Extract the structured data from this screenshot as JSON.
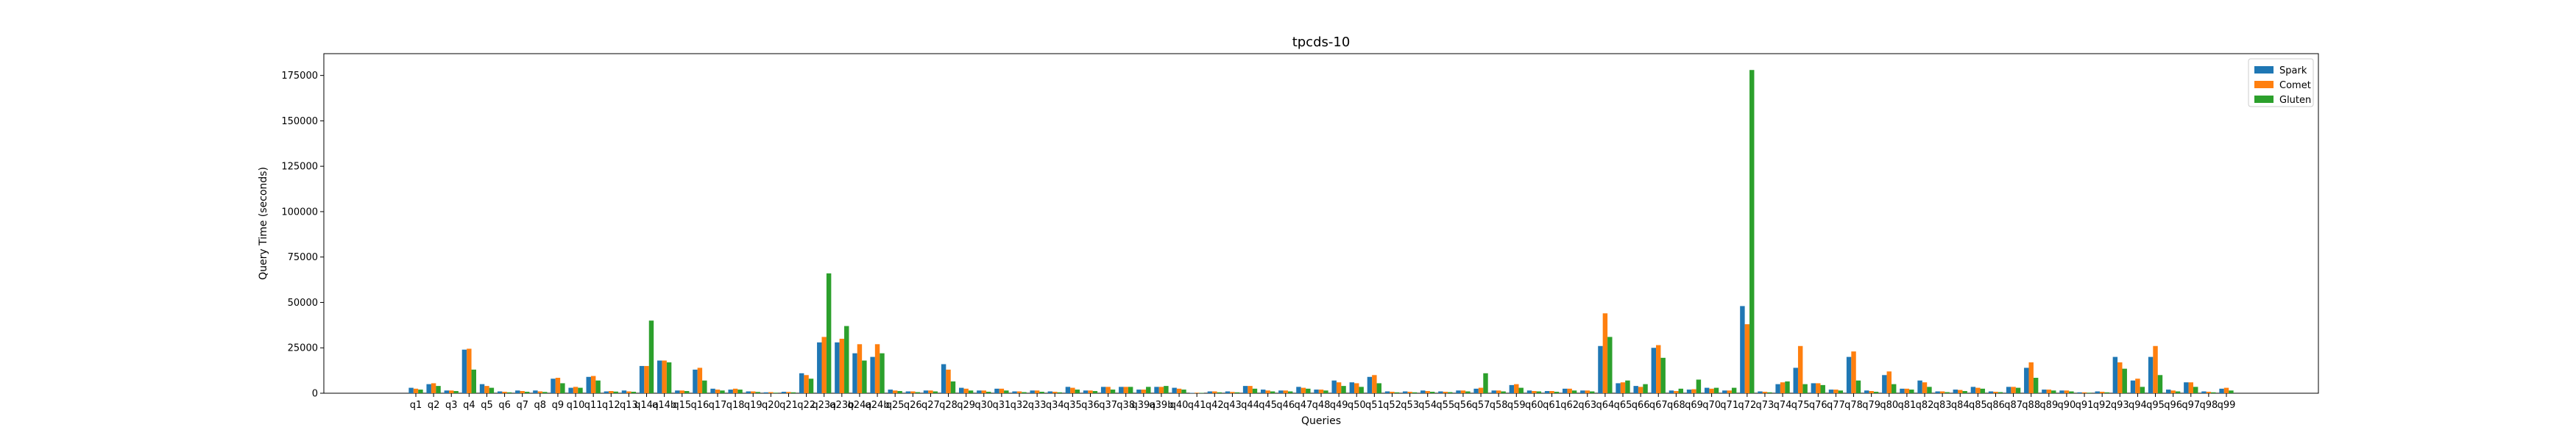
{
  "chart_data": {
    "type": "bar",
    "title": "tpcds-10",
    "xlabel": "Queries",
    "ylabel": "Query Time (seconds)",
    "ylim": [
      0,
      187000
    ],
    "yticks": [
      0,
      25000,
      50000,
      75000,
      100000,
      125000,
      150000,
      175000
    ],
    "legend_position": "top-right",
    "grid": false,
    "categories": [
      "q1",
      "q2",
      "q3",
      "q4",
      "q5",
      "q6",
      "q7",
      "q8",
      "q9",
      "q10",
      "q11",
      "q12",
      "q13",
      "q14a",
      "q14b",
      "q15",
      "q16",
      "q17",
      "q18",
      "q19",
      "q20",
      "q21",
      "q22",
      "q23a",
      "q23b",
      "q24a",
      "q24b",
      "q25",
      "q26",
      "q27",
      "q28",
      "q29",
      "q30",
      "q31",
      "q32",
      "q33",
      "q34",
      "q35",
      "q36",
      "q37",
      "q38",
      "q39a",
      "q39b",
      "q40",
      "q41",
      "q42",
      "q43",
      "q44",
      "q45",
      "q46",
      "q47",
      "q48",
      "q49",
      "q50",
      "q51",
      "q52",
      "q53",
      "q54",
      "q55",
      "q56",
      "q57",
      "q58",
      "q59",
      "q60",
      "q61",
      "q62",
      "q63",
      "q64",
      "q65",
      "q66",
      "q67",
      "q68",
      "q69",
      "q70",
      "q71",
      "q72",
      "q73",
      "q74",
      "q75",
      "q76",
      "q77",
      "q78",
      "q79",
      "q80",
      "q81",
      "q82",
      "q83",
      "q84",
      "q85",
      "q86",
      "q87",
      "q88",
      "q89",
      "q90",
      "q91",
      "q92",
      "q93",
      "q94",
      "q95",
      "q96",
      "q97",
      "q98",
      "q99"
    ],
    "series": [
      {
        "name": "Spark",
        "color": "#1f77b4",
        "values": [
          3000,
          5000,
          1500,
          24000,
          5000,
          1000,
          1500,
          1500,
          8000,
          3000,
          9000,
          1000,
          1500,
          15000,
          18000,
          1500,
          13000,
          2500,
          2000,
          1000,
          500,
          800,
          11000,
          28000,
          28000,
          22000,
          20000,
          2000,
          1000,
          1500,
          16000,
          3000,
          1500,
          2500,
          1000,
          1500,
          1000,
          3500,
          1500,
          3500,
          3500,
          2000,
          3500,
          3000,
          200,
          1000,
          1000,
          4000,
          2000,
          1500,
          3500,
          2000,
          7000,
          6000,
          9000,
          1000,
          1000,
          1500,
          1000,
          1500,
          2500,
          1500,
          4500,
          1500,
          1200,
          2500,
          1500,
          26000,
          5500,
          4000,
          25000,
          1500,
          2000,
          3000,
          1500,
          48000,
          1000,
          5000,
          14000,
          5500,
          2000,
          20000,
          1500,
          10000,
          2500,
          7000,
          1000,
          2000,
          3500,
          1000,
          3500,
          14000,
          2000,
          1500,
          500,
          1000,
          20000,
          7000,
          20000,
          2000,
          6000,
          1000,
          2500
        ]
      },
      {
        "name": "Comet",
        "color": "#ff7f0e",
        "values": [
          2500,
          5500,
          1500,
          24500,
          4000,
          800,
          1200,
          1000,
          8500,
          3500,
          9500,
          1200,
          1000,
          15000,
          18000,
          1500,
          14000,
          2000,
          2500,
          1000,
          600,
          700,
          10000,
          31000,
          30000,
          27000,
          27000,
          1500,
          1000,
          1500,
          13000,
          2500,
          1500,
          2500,
          1000,
          1500,
          800,
          3000,
          1500,
          3500,
          3500,
          2000,
          3500,
          2500,
          300,
          1000,
          700,
          4000,
          1500,
          1500,
          3000,
          2000,
          6000,
          5500,
          10000,
          800,
          800,
          1200,
          800,
          1500,
          3000,
          1500,
          5000,
          1200,
          1200,
          2500,
          1500,
          44000,
          6000,
          3500,
          26500,
          1200,
          2200,
          2500,
          1500,
          38000,
          800,
          6000,
          26000,
          5500,
          2000,
          23000,
          1200,
          12000,
          2500,
          6000,
          1000,
          1800,
          3000,
          800,
          3500,
          17000,
          2000,
          1500,
          500,
          800,
          17000,
          8000,
          26000,
          1500,
          6000,
          800,
          3000
        ]
      },
      {
        "name": "Gluten",
        "color": "#2ca02c",
        "values": [
          2000,
          4000,
          1200,
          13000,
          3000,
          500,
          800,
          700,
          5500,
          3000,
          7000,
          900,
          800,
          40000,
          17000,
          1200,
          7000,
          1500,
          2000,
          700,
          300,
          500,
          8000,
          66000,
          37000,
          18000,
          22000,
          1200,
          600,
          1000,
          6500,
          1500,
          800,
          1500,
          600,
          800,
          500,
          2000,
          1200,
          2000,
          3500,
          3500,
          4000,
          2000,
          200,
          500,
          500,
          2500,
          1000,
          1000,
          2500,
          1500,
          4000,
          3500,
          5500,
          500,
          500,
          800,
          600,
          1000,
          11000,
          1000,
          3000,
          1000,
          800,
          1500,
          1000,
          31000,
          7000,
          5000,
          19500,
          2500,
          7500,
          3000,
          3000,
          178000,
          500,
          6500,
          5000,
          4500,
          1500,
          7000,
          800,
          5000,
          2000,
          3500,
          600,
          1200,
          2500,
          600,
          3000,
          8500,
          1500,
          1000,
          300,
          500,
          13500,
          3500,
          10000,
          1000,
          3500,
          500,
          1500
        ]
      }
    ]
  }
}
